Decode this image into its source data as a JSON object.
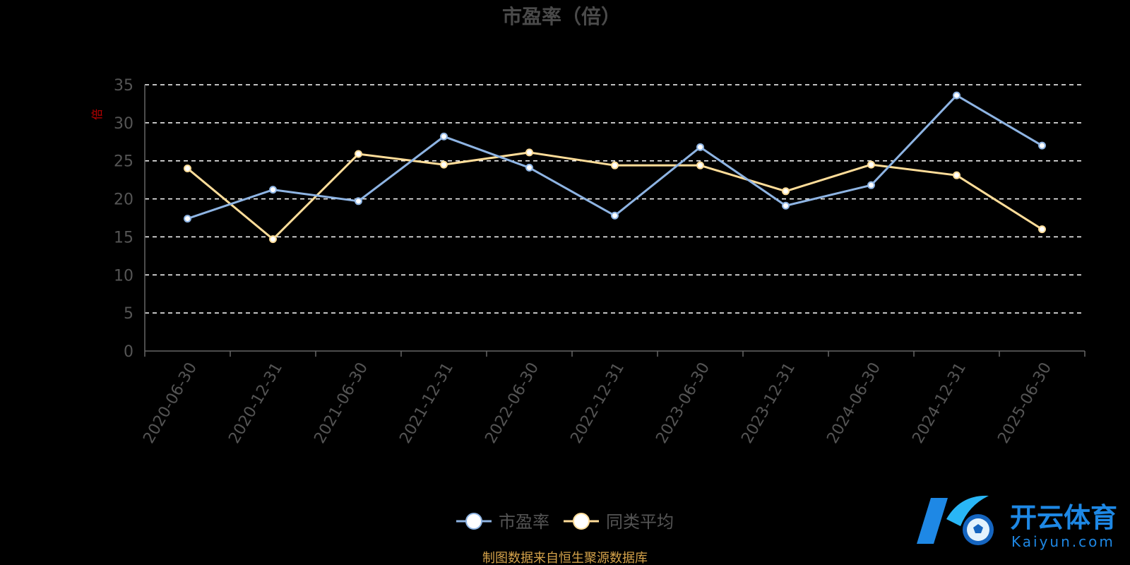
{
  "chart_data": {
    "type": "line",
    "title": "市盈率（倍）",
    "ylabel": "倍",
    "ylim": [
      0,
      35
    ],
    "yticks": [
      0,
      5,
      10,
      15,
      20,
      25,
      30,
      35
    ],
    "grid": true,
    "legend_position": "bottom",
    "categories": [
      "2020-06-30",
      "2020-12-31",
      "2021-06-30",
      "2021-12-31",
      "2022-06-30",
      "2022-12-31",
      "2023-06-30",
      "2023-12-31",
      "2024-06-30",
      "2024-12-31",
      "2025-06-30"
    ],
    "series": [
      {
        "name": "市盈率",
        "color": "#8eb4e3",
        "values": [
          17.4,
          21.2,
          19.7,
          28.2,
          24.1,
          17.8,
          26.8,
          19.1,
          21.8,
          33.6,
          27.0
        ]
      },
      {
        "name": "同类平均",
        "color": "#ffdd99",
        "values": [
          24.0,
          14.7,
          25.9,
          24.5,
          26.1,
          24.4,
          24.4,
          21.0,
          24.5,
          23.1,
          16.0
        ]
      }
    ]
  },
  "footer": {
    "source": "制图数据来自恒生聚源数据库"
  },
  "watermark": {
    "brand_cn": "开云体育",
    "brand_en": "Kaiyun.com"
  }
}
